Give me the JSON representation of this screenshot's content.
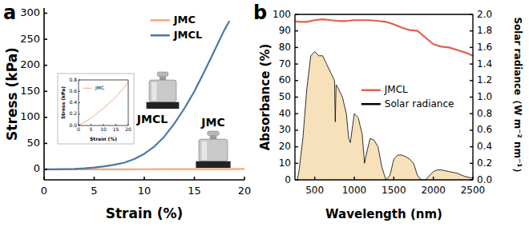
{
  "chart_data": [
    {
      "type": "line",
      "title": "a",
      "x_label": "Strain (%)",
      "y_label": "Stress (kPa)",
      "xlim": [
        0,
        20
      ],
      "xticks": [
        0,
        5,
        10,
        15,
        20
      ],
      "ylim": [
        -20,
        310
      ],
      "yticks": [
        0,
        50,
        100,
        150,
        200,
        250,
        300
      ],
      "grid": false,
      "legend": "upper right",
      "annotations": [
        "JMCL",
        "JMC"
      ],
      "series": [
        {
          "name": "JMC",
          "color": "#f4a47a",
          "x": [
            0,
            2,
            4,
            6,
            8,
            10,
            12,
            14,
            16,
            18,
            20
          ],
          "values": [
            0,
            0.05,
            0.1,
            0.16,
            0.23,
            0.3,
            0.38,
            0.46,
            0.55,
            0.65,
            0.76
          ]
        },
        {
          "name": "JMCL",
          "color": "#4a78a8",
          "x": [
            0,
            1,
            2,
            3,
            4,
            5,
            6,
            7,
            8,
            9,
            10,
            11,
            12,
            13,
            14,
            15,
            16,
            17,
            18,
            18.5
          ],
          "values": [
            0,
            0.2,
            0.5,
            1,
            2,
            3.5,
            6,
            9,
            13,
            20,
            30,
            44,
            63,
            88,
            117,
            150,
            188,
            228,
            268,
            285
          ]
        }
      ]
    },
    {
      "type": "line",
      "x_label": "Strain (%)",
      "y_label": "Stress (kPa)",
      "xlim": [
        0,
        20
      ],
      "xticks": [
        0,
        5,
        10,
        15,
        20
      ],
      "ylim": [
        0,
        0.8
      ],
      "yticks": [
        {
          "value": 0,
          "label": "0.0"
        },
        {
          "value": 0.2,
          "label": "0.2"
        },
        {
          "value": 0.4,
          "label": "0.4"
        },
        {
          "value": 0.6,
          "label": "0.6"
        },
        {
          "value": 0.8,
          "label": "0.8"
        }
      ],
      "grid": false,
      "legend": "upper left",
      "series": [
        {
          "name": "JMC",
          "color": "#f4a47a",
          "x": [
            0,
            2,
            4,
            6,
            8,
            10,
            12,
            14,
            16,
            18,
            20
          ],
          "values": [
            0,
            0.05,
            0.1,
            0.16,
            0.23,
            0.3,
            0.38,
            0.46,
            0.55,
            0.65,
            0.76
          ]
        }
      ]
    },
    {
      "type": "line",
      "title": "b",
      "x_label": "Wavelength (nm)",
      "y_label": "Absorbance (%)",
      "y2_label": "Solar radiance（W m⁻² nm⁻¹）",
      "xlim": [
        250,
        2500
      ],
      "xticks": [
        500,
        1000,
        1500,
        2000,
        2500
      ],
      "ylim": [
        0,
        100
      ],
      "yticks": [
        0,
        10,
        20,
        30,
        40,
        50,
        60,
        70,
        80,
        90,
        100
      ],
      "y2lim": [
        0,
        2
      ],
      "y2ticks": [
        {
          "value": 0,
          "label": "0.0"
        },
        {
          "value": 0.2,
          "label": "0.2"
        },
        {
          "value": 0.4,
          "label": "0.4"
        },
        {
          "value": 0.6,
          "label": "0.6"
        },
        {
          "value": 0.8,
          "label": "0.8"
        },
        {
          "value": 1,
          "label": "1.0"
        },
        {
          "value": 1.2,
          "label": "1.2"
        },
        {
          "value": 1.4,
          "label": "1.4"
        },
        {
          "value": 1.6,
          "label": "1.6"
        },
        {
          "value": 1.8,
          "label": "1.8"
        },
        {
          "value": 2,
          "label": "2.0"
        }
      ],
      "grid": false,
      "legend": "center right",
      "series": [
        {
          "name": "JMCL",
          "color": "#e0604a",
          "x": [
            250,
            300,
            400,
            500,
            600,
            700,
            800,
            900,
            1000,
            1100,
            1200,
            1300,
            1400,
            1500,
            1600,
            1700,
            1800,
            1900,
            2000,
            2100,
            2200,
            2300,
            2400,
            2500
          ],
          "values": [
            96,
            95.5,
            95.5,
            96.5,
            97,
            96.5,
            96,
            96,
            96.5,
            96.5,
            96.5,
            96,
            95.5,
            94,
            92,
            90.5,
            90,
            86,
            82,
            80.5,
            80,
            78.5,
            77,
            75
          ]
        },
        {
          "name": "Solar radiance",
          "color": "#000000",
          "type": "area",
          "axis": "y2",
          "x": [
            280,
            300,
            350,
            400,
            450,
            500,
            550,
            600,
            650,
            700,
            750,
            760,
            770,
            800,
            850,
            900,
            930,
            950,
            1000,
            1050,
            1100,
            1130,
            1150,
            1200,
            1250,
            1300,
            1350,
            1400,
            1450,
            1500,
            1550,
            1600,
            1650,
            1700,
            1750,
            1800,
            1850,
            1900,
            1950,
            2000,
            2050,
            2100,
            2200,
            2300,
            2400,
            2500
          ],
          "values": [
            0,
            0.1,
            0.5,
            1.1,
            1.5,
            1.55,
            1.5,
            1.5,
            1.4,
            1.3,
            1.2,
            0.7,
            1.15,
            1.1,
            1.0,
            0.8,
            0.5,
            0.45,
            0.8,
            0.75,
            0.55,
            0.2,
            0.3,
            0.5,
            0.48,
            0.4,
            0.15,
            0,
            0.05,
            0.25,
            0.3,
            0.3,
            0.28,
            0.25,
            0.2,
            0.05,
            0,
            0,
            0.05,
            0.1,
            0.12,
            0.12,
            0.1,
            0.08,
            0.04,
            0.02
          ]
        }
      ]
    }
  ]
}
